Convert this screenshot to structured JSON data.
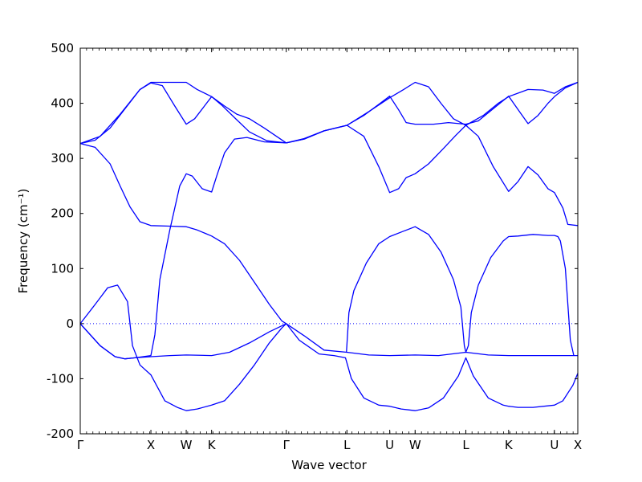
{
  "chart_data": {
    "type": "line",
    "title": "",
    "xlabel": "Wave vector",
    "ylabel": "Frequency (cm⁻¹)",
    "ylim": [
      -200,
      500
    ],
    "yticks": [
      -200,
      -100,
      0,
      100,
      200,
      300,
      400,
      500
    ],
    "xlim": [
      0,
      100
    ],
    "xticks": [
      {
        "label": "Γ",
        "x": 0
      },
      {
        "label": "X",
        "x": 14.2
      },
      {
        "label": "W",
        "x": 21.3
      },
      {
        "label": "K",
        "x": 26.4
      },
      {
        "label": "Γ",
        "x": 41.4
      },
      {
        "label": "L",
        "x": 53.6
      },
      {
        "label": "U",
        "x": 62.2
      },
      {
        "label": "W",
        "x": 67.3
      },
      {
        "label": "L",
        "x": 77.5
      },
      {
        "label": "K",
        "x": 86.1
      },
      {
        "label": "U",
        "x": 95.3
      },
      {
        "label": "X",
        "x": 100
      }
    ],
    "grid": false,
    "color": "#0000ff",
    "zero_line": true,
    "series": [
      {
        "values": [
          [
            0,
            327
          ],
          [
            3,
            333
          ],
          [
            6,
            355
          ],
          [
            9,
            390
          ],
          [
            12,
            425
          ],
          [
            14.2,
            438
          ],
          [
            17,
            438
          ],
          [
            21.3,
            438
          ],
          [
            23.5,
            425
          ],
          [
            26.4,
            412
          ],
          [
            29,
            395
          ],
          [
            31.5,
            380
          ],
          [
            34,
            372
          ],
          [
            37,
            355
          ],
          [
            41.4,
            328
          ],
          [
            45,
            335
          ],
          [
            49,
            350
          ],
          [
            53.6,
            360
          ],
          [
            58,
            385
          ],
          [
            62.2,
            410
          ],
          [
            65,
            425
          ],
          [
            67.3,
            438
          ],
          [
            70,
            430
          ],
          [
            72.5,
            400
          ],
          [
            75,
            372
          ],
          [
            77.5,
            360
          ],
          [
            81,
            378
          ],
          [
            84,
            400
          ],
          [
            86.1,
            412
          ],
          [
            90,
            425
          ],
          [
            93,
            424
          ],
          [
            95.3,
            418
          ],
          [
            97.5,
            430
          ],
          [
            100,
            438
          ]
        ]
      },
      {
        "values": [
          [
            0,
            327
          ],
          [
            4,
            340
          ],
          [
            8,
            380
          ],
          [
            12,
            425
          ],
          [
            14.2,
            437
          ],
          [
            16.5,
            432
          ],
          [
            19,
            395
          ],
          [
            21.3,
            362
          ],
          [
            23,
            372
          ],
          [
            26.4,
            412
          ],
          [
            28.5,
            396
          ],
          [
            31,
            374
          ],
          [
            34,
            348
          ],
          [
            37.5,
            332
          ],
          [
            41.4,
            328
          ],
          [
            45,
            336
          ],
          [
            49,
            350
          ],
          [
            53.6,
            360
          ],
          [
            57,
            378
          ],
          [
            60,
            398
          ],
          [
            62.2,
            413
          ],
          [
            64,
            388
          ],
          [
            65.5,
            365
          ],
          [
            67.3,
            362
          ],
          [
            71,
            362
          ],
          [
            74,
            365
          ],
          [
            77.5,
            362
          ],
          [
            80,
            368
          ],
          [
            83,
            390
          ],
          [
            86.1,
            413
          ],
          [
            88.5,
            382
          ],
          [
            90,
            363
          ],
          [
            92,
            378
          ],
          [
            94,
            400
          ],
          [
            95.3,
            412
          ],
          [
            97.5,
            428
          ],
          [
            100,
            438
          ]
        ]
      },
      {
        "values": [
          [
            0,
            327
          ],
          [
            3,
            320
          ],
          [
            6,
            290
          ],
          [
            8,
            250
          ],
          [
            10,
            212
          ],
          [
            12,
            185
          ],
          [
            14.2,
            178
          ],
          [
            18,
            177
          ],
          [
            21.3,
            176
          ],
          [
            23.5,
            170
          ],
          [
            26.4,
            159
          ],
          [
            29,
            145
          ],
          [
            32,
            115
          ],
          [
            35,
            75
          ],
          [
            38,
            35
          ],
          [
            40.5,
            5
          ],
          [
            41.4,
            0
          ]
        ]
      },
      {
        "values": [
          [
            0,
            0
          ],
          [
            3,
            35
          ],
          [
            5.5,
            65
          ],
          [
            7.5,
            70
          ],
          [
            9.5,
            40
          ],
          [
            10.5,
            -40
          ],
          [
            12,
            -75
          ],
          [
            14.2,
            -93
          ],
          [
            17,
            -140
          ],
          [
            19.5,
            -152
          ],
          [
            21.3,
            -158
          ],
          [
            23.5,
            -155
          ],
          [
            26.4,
            -148
          ],
          [
            29,
            -140
          ],
          [
            32,
            -110
          ],
          [
            35,
            -75
          ],
          [
            38,
            -35
          ],
          [
            40.5,
            -8
          ],
          [
            41.4,
            0
          ]
        ]
      },
      {
        "values": [
          [
            0,
            0
          ],
          [
            4,
            -40
          ],
          [
            7,
            -60
          ],
          [
            9,
            -64
          ],
          [
            11,
            -62
          ],
          [
            14.2,
            -60
          ],
          [
            18,
            -58
          ],
          [
            21.3,
            -57
          ],
          [
            26.4,
            -58
          ],
          [
            30,
            -52
          ],
          [
            34,
            -35
          ],
          [
            38,
            -15
          ],
          [
            41.4,
            0
          ],
          [
            45,
            -22
          ],
          [
            49,
            -48
          ],
          [
            53.6,
            -52
          ],
          [
            58,
            -57
          ],
          [
            62.2,
            -58
          ],
          [
            67.3,
            -57
          ],
          [
            72,
            -58
          ],
          [
            77.5,
            -52
          ],
          [
            82,
            -57
          ],
          [
            86.1,
            -58
          ],
          [
            90,
            -58
          ],
          [
            95.3,
            -58
          ],
          [
            100,
            -58
          ]
        ]
      },
      {
        "values": [
          [
            0,
            0
          ],
          [
            4,
            -40
          ],
          [
            7,
            -60
          ],
          [
            9,
            -64
          ],
          [
            11,
            -62
          ],
          [
            14.2,
            -58
          ],
          [
            15,
            -20
          ],
          [
            16,
            80
          ],
          [
            18,
            170
          ],
          [
            20,
            250
          ],
          [
            21.3,
            272
          ],
          [
            22.5,
            268
          ],
          [
            24.5,
            245
          ],
          [
            26.4,
            239
          ],
          [
            27.5,
            270
          ],
          [
            29,
            310
          ],
          [
            31,
            335
          ],
          [
            33.5,
            338
          ],
          [
            37,
            330
          ],
          [
            41.4,
            328
          ],
          [
            45,
            335
          ],
          [
            49,
            350
          ],
          [
            53.6,
            360
          ],
          [
            57,
            340
          ],
          [
            60,
            285
          ],
          [
            62.2,
            238
          ],
          [
            64,
            245
          ],
          [
            65.5,
            265
          ],
          [
            67.3,
            272
          ],
          [
            70,
            290
          ],
          [
            73,
            318
          ],
          [
            75.5,
            342
          ],
          [
            77.5,
            360
          ],
          [
            80,
            340
          ],
          [
            83,
            285
          ],
          [
            86.1,
            240
          ],
          [
            88,
            258
          ],
          [
            90,
            285
          ],
          [
            92,
            270
          ],
          [
            94,
            245
          ],
          [
            95.3,
            238
          ],
          [
            97,
            210
          ],
          [
            98,
            180
          ],
          [
            100,
            178
          ]
        ]
      },
      {
        "values": [
          [
            41.4,
            0
          ],
          [
            44,
            -30
          ],
          [
            48,
            -55
          ],
          [
            51,
            -58
          ],
          [
            53.3,
            -62
          ],
          [
            54.5,
            -100
          ],
          [
            57,
            -135
          ],
          [
            60,
            -148
          ],
          [
            62.2,
            -150
          ],
          [
            64.5,
            -155
          ],
          [
            67.3,
            -158
          ],
          [
            70,
            -153
          ],
          [
            73,
            -135
          ],
          [
            76,
            -95
          ],
          [
            77.5,
            -62
          ],
          [
            79,
            -95
          ],
          [
            82,
            -135
          ],
          [
            85,
            -148
          ],
          [
            86.1,
            -150
          ],
          [
            88,
            -152
          ],
          [
            91,
            -152
          ],
          [
            95.3,
            -148
          ],
          [
            97,
            -140
          ],
          [
            99,
            -112
          ],
          [
            100,
            -90
          ]
        ]
      },
      {
        "values": [
          [
            53.5,
            -52
          ],
          [
            54,
            20
          ],
          [
            55,
            60
          ],
          [
            57.5,
            110
          ],
          [
            60,
            145
          ],
          [
            62.2,
            158
          ],
          [
            65,
            168
          ],
          [
            67.3,
            176
          ],
          [
            70,
            162
          ],
          [
            72.5,
            130
          ],
          [
            75,
            80
          ],
          [
            76.5,
            30
          ],
          [
            77.2,
            -40
          ],
          [
            77.5,
            -52
          ],
          [
            78,
            -40
          ],
          [
            78.6,
            20
          ],
          [
            80,
            70
          ],
          [
            82.5,
            120
          ],
          [
            85,
            150
          ],
          [
            86.1,
            158
          ],
          [
            88,
            159
          ],
          [
            91,
            162
          ],
          [
            94,
            160
          ],
          [
            95.3,
            160
          ],
          [
            96,
            158
          ],
          [
            96.5,
            150
          ],
          [
            97.5,
            100
          ],
          [
            98.5,
            -30
          ],
          [
            99.2,
            -58
          ]
        ]
      }
    ]
  }
}
